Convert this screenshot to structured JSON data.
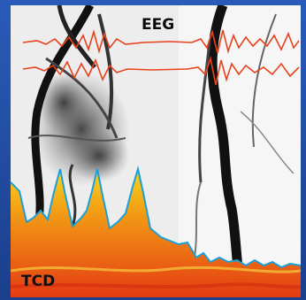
{
  "labels": {
    "eeg": "EEG",
    "tcd": "TCD"
  },
  "colors": {
    "frame": "#1f4ea5",
    "eeg_trace": "#e8421c",
    "tcd_fill_top": "#f4c21a",
    "tcd_fill_bottom": "#e53b12",
    "tcd_edge": "#1b9fd8",
    "vessel_ink": "#1a1a1a"
  }
}
